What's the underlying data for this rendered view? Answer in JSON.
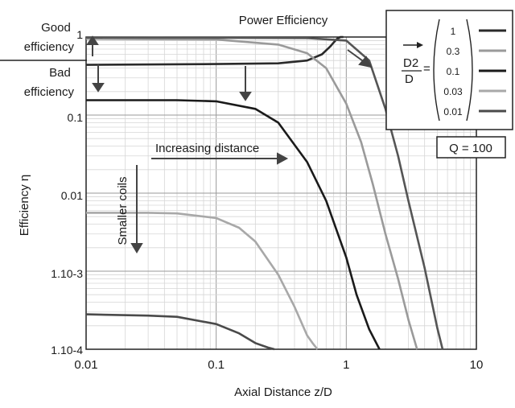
{
  "chart_data": {
    "type": "line",
    "title": "Power Efficiency",
    "xlabel": "Axial Distance z/D",
    "ylabel": "Efficiency η",
    "xscale": "log",
    "yscale": "log",
    "xlim": [
      0.01,
      10
    ],
    "ylim": [
      0.0001,
      1
    ],
    "grid": true,
    "x_tick_labels": [
      "0.01",
      "0.1",
      "1",
      "10"
    ],
    "y_tick_labels": [
      "1",
      "0.1",
      "0.01",
      "1.10-3",
      "1.10-4"
    ],
    "legend": {
      "placement": "top-right",
      "title": "D2/D =",
      "entries": [
        "1",
        "0.3",
        "0.1",
        "0.03",
        "0.01"
      ],
      "colors": [
        "#2a2a2a",
        "#9a9a9a",
        "#1a1a1a",
        "#a8a8a8",
        "#4a4a4a"
      ]
    },
    "q_label": "Q = 100",
    "annotations": {
      "good": [
        "Good",
        "efficiency"
      ],
      "bad": [
        "Bad",
        "efficiency"
      ],
      "increasing_distance": "Increasing distance",
      "smaller_coils": "Smaller coils"
    },
    "series": [
      {
        "name": "1",
        "color": "#2a2a2a",
        "x": [
          0.01,
          0.1,
          0.3,
          0.5,
          0.65,
          0.75,
          0.8,
          0.85,
          0.9,
          0.95
        ],
        "y": [
          0.44,
          0.45,
          0.46,
          0.5,
          0.6,
          0.75,
          0.85,
          0.95,
          1.0,
          1.0
        ]
      },
      {
        "name": "0.3",
        "color": "#9a9a9a",
        "x": [
          0.01,
          0.1,
          0.3,
          0.5,
          0.7,
          1.0,
          1.3,
          1.6,
          2.0,
          2.5,
          3.0,
          3.5
        ],
        "y": [
          0.95,
          0.93,
          0.8,
          0.62,
          0.4,
          0.14,
          0.045,
          0.013,
          0.003,
          0.0008,
          0.00024,
          0.0001
        ]
      },
      {
        "name": "0.1",
        "color": "#1a1a1a",
        "x": [
          0.01,
          0.05,
          0.1,
          0.2,
          0.3,
          0.5,
          0.7,
          1.0,
          1.2,
          1.5,
          1.8
        ],
        "y": [
          0.155,
          0.155,
          0.15,
          0.12,
          0.08,
          0.025,
          0.008,
          0.0015,
          0.0005,
          0.00018,
          0.0001
        ]
      },
      {
        "name": "0.03",
        "color": "#a8a8a8",
        "x": [
          0.01,
          0.03,
          0.05,
          0.1,
          0.15,
          0.2,
          0.3,
          0.4,
          0.5,
          0.55,
          0.6
        ],
        "y": [
          0.0056,
          0.0056,
          0.0055,
          0.0048,
          0.0036,
          0.0024,
          0.0009,
          0.00035,
          0.00015,
          0.00012,
          0.0001
        ]
      },
      {
        "name": "0.01",
        "color": "#4a4a4a",
        "x": [
          0.01,
          0.03,
          0.05,
          0.1,
          0.15,
          0.2,
          0.25,
          0.28
        ],
        "y": [
          0.00028,
          0.00027,
          0.00026,
          0.00021,
          0.00016,
          0.00012,
          0.000105,
          0.0001
        ]
      },
      {
        "name": "1",
        "color": "#555555",
        "x": [
          0.01,
          0.1,
          0.5,
          1.0,
          1.5,
          2.0,
          2.5,
          3.0,
          4.0,
          5.0,
          5.5
        ],
        "y": [
          0.985,
          0.98,
          0.97,
          0.9,
          0.5,
          0.12,
          0.03,
          0.008,
          0.0011,
          0.00019,
          0.0001
        ]
      }
    ]
  }
}
